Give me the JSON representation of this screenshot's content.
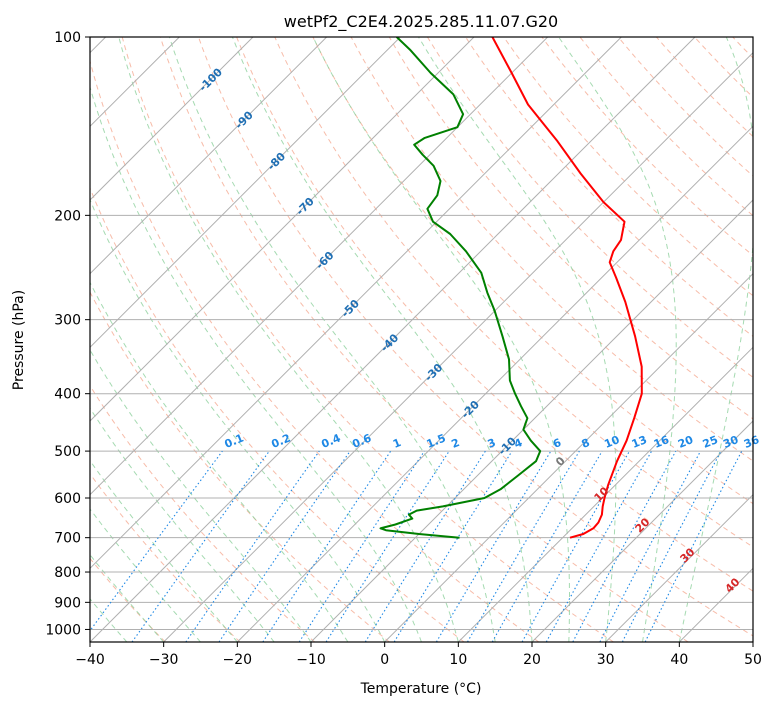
{
  "chart_data": {
    "type": "line",
    "chart_kind": "Skew-T log-P diagram",
    "title": "wetPf2_C2E4.2025.285.11.07.G20",
    "xlabel": "Temperature (°C)",
    "ylabel": "Pressure (hPa)",
    "xlim": [
      -40,
      50
    ],
    "ylim": [
      1050,
      100
    ],
    "y_scale": "log",
    "x_ticks": [
      -40,
      -30,
      -20,
      -10,
      0,
      10,
      20,
      30,
      40,
      50
    ],
    "y_ticks": [
      100,
      200,
      300,
      400,
      500,
      600,
      700,
      800,
      900,
      1000
    ],
    "grid": true,
    "colors": {
      "temperature": "#ff0000",
      "dewpoint": "#008000",
      "isotherm_grid": "#b0b0b0",
      "dry_adiabat": "#f4a58c",
      "moist_adiabat": "#8fd19e",
      "mixing_ratio": "#1e88e5",
      "isotherm_label": "#1f6fb4",
      "cape_label": "#d62728",
      "zero_label": "#777777",
      "outer_arcs": "#d8c0a0"
    },
    "series": [
      {
        "key": "temperature",
        "points": [
          {
            "p": 700,
            "t": 11.0
          },
          {
            "p": 690,
            "t": 12.3
          },
          {
            "p": 675,
            "t": 12.9
          },
          {
            "p": 660,
            "t": 12.8
          },
          {
            "p": 640,
            "t": 12.2
          },
          {
            "p": 620,
            "t": 11.2
          },
          {
            "p": 600,
            "t": 10.3
          },
          {
            "p": 570,
            "t": 9.0
          },
          {
            "p": 520,
            "t": 7.0
          },
          {
            "p": 480,
            "t": 5.5
          },
          {
            "p": 440,
            "t": 3.5
          },
          {
            "p": 400,
            "t": 1.2
          },
          {
            "p": 360,
            "t": -2.5
          },
          {
            "p": 320,
            "t": -7.5
          },
          {
            "p": 280,
            "t": -13.5
          },
          {
            "p": 255,
            "t": -18.0
          },
          {
            "p": 240,
            "t": -21.0
          },
          {
            "p": 230,
            "t": -22.0
          },
          {
            "p": 220,
            "t": -22.5
          },
          {
            "p": 205,
            "t": -24.5
          },
          {
            "p": 190,
            "t": -30.0
          },
          {
            "p": 170,
            "t": -37.0
          },
          {
            "p": 150,
            "t": -44.5
          },
          {
            "p": 130,
            "t": -53.5
          },
          {
            "p": 115,
            "t": -60.0
          },
          {
            "p": 100,
            "t": -67.5
          }
        ]
      },
      {
        "key": "dewpoint",
        "points": [
          {
            "p": 700,
            "t": -4.0
          },
          {
            "p": 690,
            "t": -10.0
          },
          {
            "p": 680,
            "t": -15.0
          },
          {
            "p": 675,
            "t": -16.0
          },
          {
            "p": 665,
            "t": -14.5
          },
          {
            "p": 650,
            "t": -13.0
          },
          {
            "p": 640,
            "t": -14.0
          },
          {
            "p": 630,
            "t": -13.5
          },
          {
            "p": 620,
            "t": -10.5
          },
          {
            "p": 600,
            "t": -6.0
          },
          {
            "p": 580,
            "t": -5.0
          },
          {
            "p": 550,
            "t": -4.5
          },
          {
            "p": 520,
            "t": -4.0
          },
          {
            "p": 500,
            "t": -4.8
          },
          {
            "p": 480,
            "t": -7.5
          },
          {
            "p": 460,
            "t": -10.0
          },
          {
            "p": 440,
            "t": -11.0
          },
          {
            "p": 420,
            "t": -13.5
          },
          {
            "p": 400,
            "t": -16.0
          },
          {
            "p": 380,
            "t": -18.5
          },
          {
            "p": 350,
            "t": -21.5
          },
          {
            "p": 320,
            "t": -25.5
          },
          {
            "p": 290,
            "t": -30.0
          },
          {
            "p": 270,
            "t": -33.5
          },
          {
            "p": 250,
            "t": -37.0
          },
          {
            "p": 230,
            "t": -42.0
          },
          {
            "p": 215,
            "t": -46.5
          },
          {
            "p": 205,
            "t": -50.5
          },
          {
            "p": 195,
            "t": -53.0
          },
          {
            "p": 185,
            "t": -53.5
          },
          {
            "p": 175,
            "t": -55.0
          },
          {
            "p": 165,
            "t": -58.0
          },
          {
            "p": 158,
            "t": -61.0
          },
          {
            "p": 152,
            "t": -63.5
          },
          {
            "p": 148,
            "t": -63.0
          },
          {
            "p": 142,
            "t": -60.0
          },
          {
            "p": 135,
            "t": -61.0
          },
          {
            "p": 125,
            "t": -65.0
          },
          {
            "p": 115,
            "t": -71.0
          },
          {
            "p": 105,
            "t": -77.0
          },
          {
            "p": 100,
            "t": -80.5
          }
        ]
      }
    ],
    "isotherm_labels": [
      "-100",
      "-90",
      "-80",
      "-70",
      "-60",
      "-50",
      "-40",
      "-30",
      "-20",
      "-10"
    ],
    "mixing_ratio_labels": [
      "0.1",
      "0.2",
      "0.4",
      "0.6",
      "1",
      "1.5",
      "2",
      "3",
      "4",
      "6",
      "8",
      "10",
      "13",
      "16",
      "20",
      "25",
      "30",
      "36"
    ],
    "cape_labels": [
      "0",
      "10",
      "20",
      "30",
      "40"
    ]
  }
}
